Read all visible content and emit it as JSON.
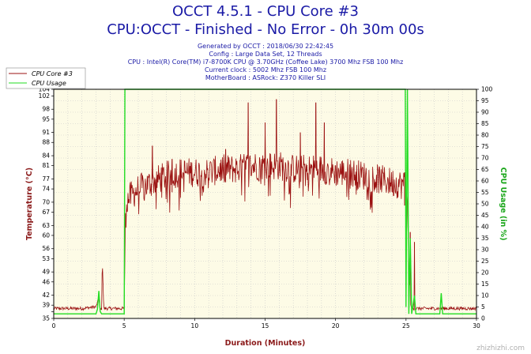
{
  "header": {
    "title_line1": "OCCT 4.5.1 - CPU Core #3",
    "title_line2": "CPU:OCCT - Finished - No Error - 0h 30m 00s",
    "info_lines": [
      "Generated by OCCT : 2018/06/30 22:42:45",
      "Config : Large Data Set, 12 Threads",
      "CPU : Intel(R) Core(TM) i7-8700K CPU @ 3.70GHz (Coffee Lake) 3700 Mhz FSB 100 Mhz",
      "Current clock : 5002 Mhz FSB 100 Mhz",
      "MotherBoard : ASRock: Z370 Killer SLI"
    ]
  },
  "watermark": "zhizhizhi.com",
  "colors": {
    "temp": "#9b1111",
    "usage": "#22dd22",
    "plot_bg": "#fdfbe6",
    "grid": "#c8c8c8"
  },
  "chart_data": {
    "type": "line",
    "xlabel": "Duration (Minutes)",
    "ylabel_left": "Temperature (°C)",
    "ylabel_right": "CPU Usage (in %)",
    "xlim": [
      0,
      30
    ],
    "ylim_left": [
      35,
      104
    ],
    "ylim_right": [
      0,
      100
    ],
    "x_ticks": [
      0,
      5,
      10,
      15,
      20,
      25,
      30
    ],
    "y_ticks_left": [
      35,
      37,
      39,
      42,
      46,
      49,
      53,
      56,
      60,
      63,
      67,
      70,
      74,
      77,
      81,
      84,
      88,
      91,
      95,
      98,
      102,
      104
    ],
    "y_ticks_left_labels": [
      "35",
      "",
      "39",
      "42",
      "46",
      "49",
      "53",
      "56",
      "60",
      "63",
      "67",
      "70",
      "74",
      "77",
      "81",
      "84",
      "88",
      "91",
      "95",
      "98",
      "102",
      "104"
    ],
    "y_ticks_right": [
      0,
      5,
      10,
      15,
      20,
      25,
      30,
      35,
      40,
      45,
      50,
      55,
      60,
      65,
      70,
      75,
      80,
      85,
      90,
      95,
      100
    ],
    "legend": {
      "position": "top-left",
      "entries": [
        "CPU Core #3",
        "CPU Usage"
      ]
    },
    "grid": true,
    "series": [
      {
        "name": "CPU Core #3",
        "axis": "left",
        "points": [
          [
            0,
            38
          ],
          [
            1,
            38
          ],
          [
            2,
            38
          ],
          [
            3,
            38.5
          ],
          [
            3.2,
            41
          ],
          [
            3.3,
            37.5
          ],
          [
            3.4,
            38
          ],
          [
            3.45,
            53
          ],
          [
            3.55,
            38
          ],
          [
            4,
            38
          ],
          [
            5,
            38
          ],
          [
            5.1,
            70
          ],
          [
            5.5,
            72
          ],
          [
            6,
            74
          ],
          [
            7,
            76
          ],
          [
            8,
            78
          ],
          [
            9,
            79
          ],
          [
            10,
            79
          ],
          [
            11,
            79
          ],
          [
            12,
            80
          ],
          [
            13,
            80
          ],
          [
            14,
            81
          ],
          [
            15,
            81
          ],
          [
            16,
            81
          ],
          [
            17,
            80
          ],
          [
            18,
            80
          ],
          [
            19,
            80
          ],
          [
            20,
            79
          ],
          [
            21,
            79
          ],
          [
            22,
            78
          ],
          [
            23,
            77
          ],
          [
            24,
            76
          ],
          [
            25,
            75
          ],
          [
            25.1,
            70
          ],
          [
            25.2,
            50
          ],
          [
            25.35,
            38
          ],
          [
            26,
            38
          ],
          [
            27,
            38
          ],
          [
            28,
            38
          ],
          [
            29,
            38
          ],
          [
            30,
            38
          ]
        ],
        "spikes": [
          [
            7.0,
            87
          ],
          [
            8.4,
            83
          ],
          [
            12.2,
            86
          ],
          [
            13.8,
            100
          ],
          [
            15.0,
            94
          ],
          [
            15.8,
            101
          ],
          [
            17.5,
            91
          ],
          [
            18.6,
            100
          ],
          [
            19.2,
            94
          ],
          [
            24.9,
            79
          ],
          [
            25.3,
            61
          ],
          [
            25.6,
            58
          ]
        ]
      },
      {
        "name": "CPU Usage",
        "axis": "right",
        "points": [
          [
            0,
            2
          ],
          [
            3.0,
            2
          ],
          [
            3.1,
            4
          ],
          [
            3.2,
            12
          ],
          [
            3.3,
            3
          ],
          [
            3.4,
            2
          ],
          [
            5.0,
            2
          ],
          [
            5.05,
            100
          ],
          [
            24.95,
            100
          ],
          [
            25.0,
            5
          ],
          [
            25.1,
            100
          ],
          [
            25.2,
            2
          ],
          [
            25.3,
            35
          ],
          [
            25.4,
            2
          ],
          [
            25.6,
            10
          ],
          [
            25.7,
            2
          ],
          [
            27.4,
            2
          ],
          [
            27.5,
            11
          ],
          [
            27.6,
            2
          ],
          [
            30,
            2
          ]
        ]
      }
    ]
  }
}
